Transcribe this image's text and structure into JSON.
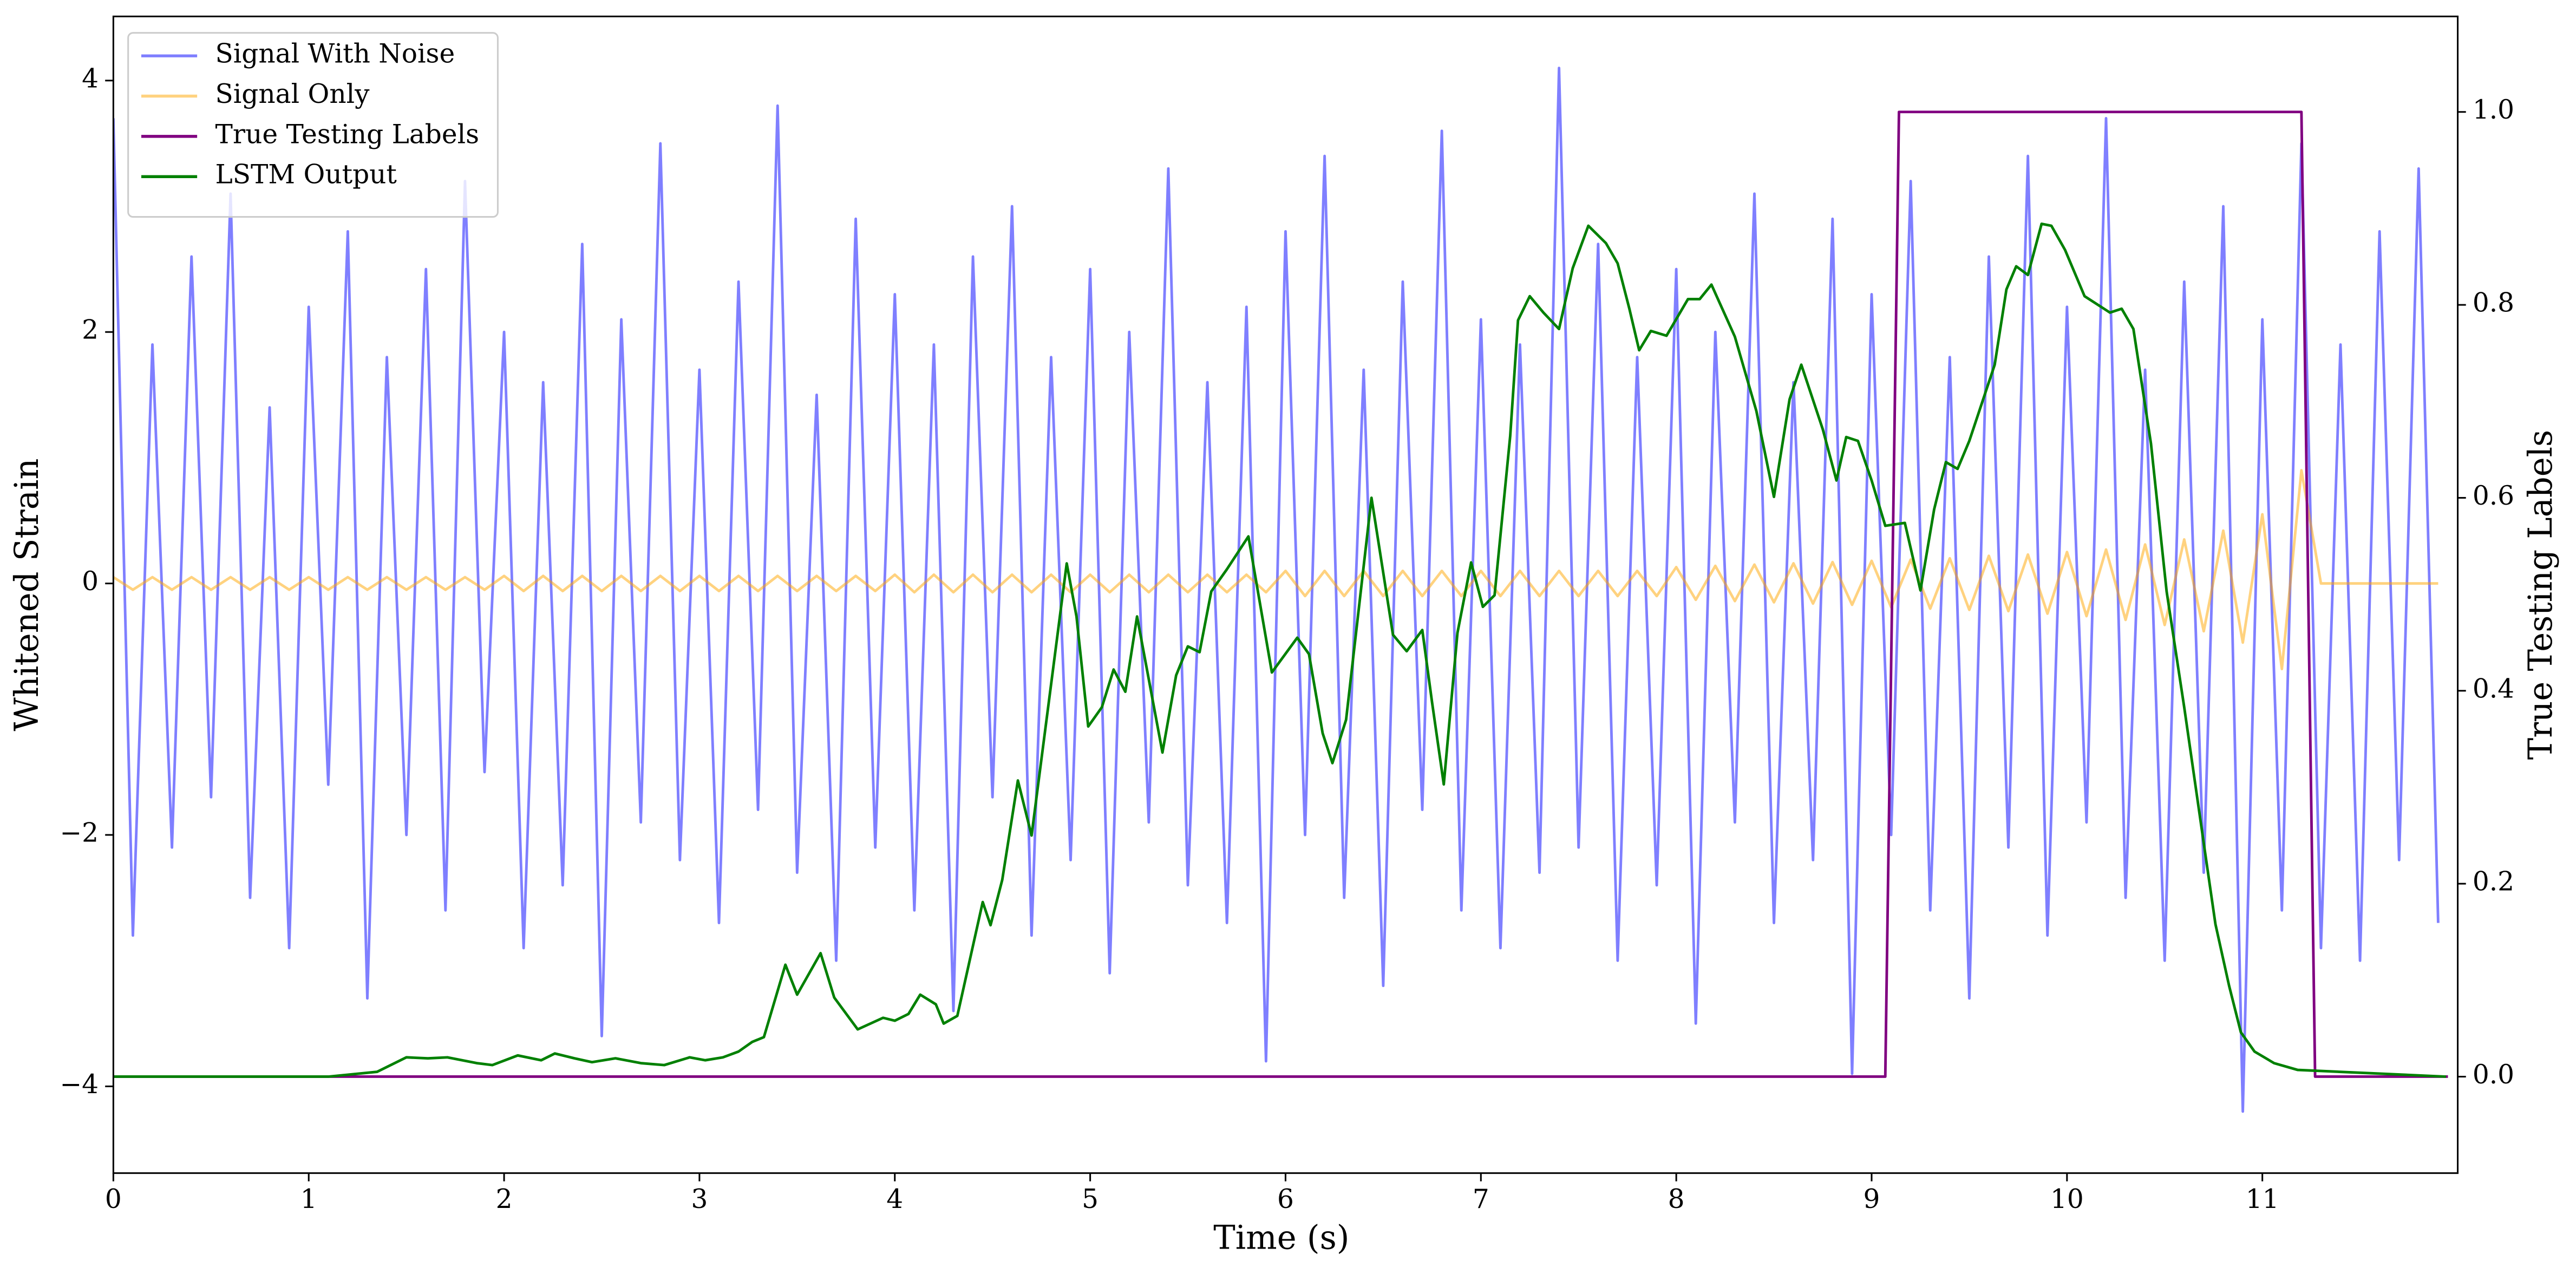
{
  "chart_data": {
    "type": "line",
    "xlabel": "Time (s)",
    "ylabel": "Whitened Strain",
    "y2label": "True Testing Labels",
    "xlim": [
      0,
      12
    ],
    "ylim": [
      -4.69,
      4.51
    ],
    "y2lim": [
      -0.1,
      1.099
    ],
    "xticks": [
      0,
      1,
      2,
      3,
      4,
      5,
      6,
      7,
      8,
      9,
      10,
      11
    ],
    "yticks": [
      {
        "value": -4,
        "label": "−4"
      },
      {
        "value": -2,
        "label": "−2"
      },
      0,
      2,
      4
    ],
    "y2ticks": [
      {
        "value": 0,
        "label": "0.0"
      },
      {
        "value": 0.2,
        "label": "0.2"
      },
      {
        "value": 0.4,
        "label": "0.4"
      },
      {
        "value": 0.6,
        "label": "0.6"
      },
      {
        "value": 0.8,
        "label": "0.8"
      },
      {
        "value": 1,
        "label": "1.0"
      }
    ],
    "legend": "upper left",
    "x": [
      0,
      0.1,
      0.2,
      0.3,
      0.4,
      0.5,
      0.6,
      0.7,
      0.8,
      0.9,
      1,
      1.1,
      1.2,
      1.3,
      1.4,
      1.5,
      1.6,
      1.7,
      1.8,
      1.9,
      2,
      2.1,
      2.2,
      2.3,
      2.4,
      2.5,
      2.6,
      2.7,
      2.8,
      2.9,
      3,
      3.1,
      3.2,
      3.3,
      3.4,
      3.5,
      3.6,
      3.7,
      3.8,
      3.9,
      4,
      4.1,
      4.2,
      4.3,
      4.4,
      4.5,
      4.6,
      4.7,
      4.8,
      4.9,
      5,
      5.1,
      5.2,
      5.3,
      5.4,
      5.5,
      5.6,
      5.7,
      5.8,
      5.9,
      6,
      6.1,
      6.2,
      6.3,
      6.4,
      6.5,
      6.6,
      6.7,
      6.8,
      6.9,
      7,
      7.1,
      7.2,
      7.3,
      7.4,
      7.5,
      7.6,
      7.7,
      7.8,
      7.9,
      8,
      8.1,
      8.2,
      8.3,
      8.4,
      8.5,
      8.6,
      8.7,
      8.8,
      8.9,
      9,
      9.1,
      9.2,
      9.3,
      9.4,
      9.5,
      9.6,
      9.7,
      9.8,
      9.9,
      10,
      10.1,
      10.2,
      10.3,
      10.4,
      10.5,
      10.6,
      10.7,
      10.8,
      10.9,
      11,
      11.1,
      11.2,
      11.3,
      11.4,
      11.5,
      11.6,
      11.7,
      11.8,
      11.9
    ],
    "series": [
      {
        "name": "Signal With Noise",
        "color": "#0000ff",
        "alpha": 0.5,
        "values": [
          3.7,
          -2.8,
          1.9,
          -2.1,
          2.6,
          -1.7,
          3.1,
          -2.5,
          1.4,
          -2.9,
          2.2,
          -1.6,
          2.8,
          -3.3,
          1.8,
          -2.0,
          2.5,
          -2.6,
          3.2,
          -1.5,
          2.0,
          -2.9,
          1.6,
          -2.4,
          2.7,
          -3.6,
          2.1,
          -1.9,
          3.5,
          -2.2,
          1.7,
          -2.7,
          2.4,
          -1.8,
          3.8,
          -2.3,
          1.5,
          -3.0,
          2.9,
          -2.1,
          2.3,
          -2.6,
          1.9,
          -3.4,
          2.6,
          -1.7,
          3.0,
          -2.8,
          1.8,
          -2.2,
          2.5,
          -3.1,
          2.0,
          -1.9,
          3.3,
          -2.4,
          1.6,
          -2.7,
          2.2,
          -3.8,
          2.8,
          -2.0,
          3.4,
          -2.5,
          1.7,
          -3.2,
          2.4,
          -1.8,
          3.6,
          -2.6,
          2.1,
          -2.9,
          1.9,
          -2.3,
          4.1,
          -2.1,
          2.7,
          -3.0,
          1.8,
          -2.4,
          2.5,
          -3.5,
          2.0,
          -1.9,
          3.1,
          -2.7,
          1.6,
          -2.2,
          2.9,
          -3.9,
          2.3,
          -2.0,
          3.2,
          -2.6,
          1.8,
          -3.3,
          2.6,
          -2.1,
          3.4,
          -2.8,
          2.2,
          -1.9,
          3.7,
          -2.5,
          1.7,
          -3.0,
          2.4,
          -2.3,
          3.0,
          -4.2,
          2.1,
          -2.6,
          3.5,
          -2.9,
          1.9,
          -3.0,
          2.8,
          -2.2,
          3.3,
          -2.7
        ]
      },
      {
        "name": "Signal Only",
        "color": "#ffa500",
        "alpha": 0.5,
        "values": [
          0.05,
          -0.05,
          0.05,
          -0.05,
          0.05,
          -0.05,
          0.05,
          -0.05,
          0.05,
          -0.05,
          0.05,
          -0.05,
          0.05,
          -0.05,
          0.05,
          -0.05,
          0.05,
          -0.05,
          0.05,
          -0.05,
          0.06,
          -0.06,
          0.06,
          -0.06,
          0.06,
          -0.06,
          0.06,
          -0.06,
          0.06,
          -0.06,
          0.06,
          -0.06,
          0.06,
          -0.06,
          0.06,
          -0.06,
          0.06,
          -0.06,
          0.06,
          -0.06,
          0.07,
          -0.07,
          0.07,
          -0.07,
          0.07,
          -0.07,
          0.07,
          -0.07,
          0.07,
          -0.07,
          0.07,
          -0.07,
          0.07,
          -0.07,
          0.07,
          -0.07,
          0.07,
          -0.07,
          0.07,
          -0.07,
          0.1,
          -0.1,
          0.1,
          -0.1,
          0.1,
          -0.1,
          0.1,
          -0.1,
          0.1,
          -0.1,
          0.1,
          -0.1,
          0.1,
          -0.1,
          0.1,
          -0.1,
          0.1,
          -0.1,
          0.1,
          -0.1,
          0.13,
          -0.13,
          0.14,
          -0.14,
          0.15,
          -0.15,
          0.16,
          -0.16,
          0.17,
          -0.17,
          0.18,
          -0.19,
          0.19,
          -0.2,
          0.2,
          -0.21,
          0.22,
          -0.22,
          0.23,
          -0.24,
          0.25,
          -0.26,
          0.27,
          -0.29,
          0.31,
          -0.33,
          0.35,
          -0.38,
          0.42,
          -0.47,
          0.55,
          -0.68,
          0.9,
          0,
          0,
          0,
          0,
          0,
          0,
          0
        ]
      },
      {
        "name": "True Testing Labels",
        "color": "#800080",
        "axis": "y2",
        "x": [
          0,
          9.07,
          9.14,
          11.2,
          11.27,
          11.95
        ],
        "values": [
          0,
          0,
          1,
          1,
          0,
          0
        ]
      },
      {
        "name": "LSTM Output",
        "color": "#008000",
        "axis": "y2",
        "x": [
          0,
          1.1,
          1.35,
          1.5,
          1.61,
          1.71,
          1.86,
          1.94,
          2.07,
          2.19,
          2.26,
          2.36,
          2.45,
          2.57,
          2.7,
          2.82,
          2.95,
          3.03,
          3.12,
          3.2,
          3.27,
          3.33,
          3.44,
          3.5,
          3.62,
          3.69,
          3.81,
          3.94,
          4.0,
          4.07,
          4.13,
          4.21,
          4.25,
          4.32,
          4.45,
          4.49,
          4.55,
          4.63,
          4.7,
          4.88,
          4.93,
          4.99,
          5.06,
          5.12,
          5.18,
          5.24,
          5.37,
          5.44,
          5.5,
          5.56,
          5.62,
          5.7,
          5.81,
          5.93,
          6.06,
          6.12,
          6.19,
          6.24,
          6.31,
          6.44,
          6.55,
          6.62,
          6.7,
          6.75,
          6.81,
          6.88,
          6.95,
          7.01,
          7.07,
          7.15,
          7.19,
          7.25,
          7.32,
          7.4,
          7.47,
          7.55,
          7.64,
          7.7,
          7.76,
          7.81,
          7.87,
          7.95,
          8.06,
          8.12,
          8.18,
          8.3,
          8.41,
          8.5,
          8.58,
          8.64,
          8.75,
          8.82,
          8.87,
          8.93,
          9.0,
          9.07,
          9.17,
          9.25,
          9.32,
          9.38,
          9.44,
          9.5,
          9.63,
          9.69,
          9.74,
          9.8,
          9.87,
          9.92,
          9.99,
          10.09,
          10.22,
          10.28,
          10.34,
          10.43,
          10.51,
          10.6,
          10.7,
          10.76,
          10.83,
          10.89,
          10.96,
          11.06,
          11.18,
          11.94
        ],
        "values": [
          0,
          0,
          0.005,
          0.02,
          0.019,
          0.02,
          0.014,
          0.012,
          0.022,
          0.017,
          0.024,
          0.019,
          0.015,
          0.019,
          0.014,
          0.012,
          0.02,
          0.017,
          0.02,
          0.026,
          0.036,
          0.041,
          0.116,
          0.085,
          0.128,
          0.082,
          0.049,
          0.061,
          0.058,
          0.065,
          0.085,
          0.075,
          0.055,
          0.063,
          0.181,
          0.157,
          0.204,
          0.307,
          0.25,
          0.532,
          0.477,
          0.363,
          0.383,
          0.422,
          0.399,
          0.477,
          0.336,
          0.416,
          0.446,
          0.44,
          0.503,
          0.526,
          0.56,
          0.419,
          0.455,
          0.438,
          0.356,
          0.325,
          0.37,
          0.6,
          0.458,
          0.441,
          0.463,
          0.388,
          0.303,
          0.46,
          0.533,
          0.487,
          0.499,
          0.664,
          0.784,
          0.809,
          0.792,
          0.775,
          0.838,
          0.882,
          0.864,
          0.843,
          0.796,
          0.753,
          0.773,
          0.768,
          0.806,
          0.806,
          0.821,
          0.767,
          0.69,
          0.601,
          0.702,
          0.738,
          0.671,
          0.618,
          0.663,
          0.659,
          0.618,
          0.571,
          0.574,
          0.504,
          0.588,
          0.637,
          0.63,
          0.659,
          0.738,
          0.816,
          0.84,
          0.831,
          0.884,
          0.882,
          0.857,
          0.809,
          0.792,
          0.796,
          0.775,
          0.656,
          0.503,
          0.383,
          0.242,
          0.158,
          0.094,
          0.046,
          0.026,
          0.014,
          0.007,
          0
        ]
      }
    ]
  }
}
